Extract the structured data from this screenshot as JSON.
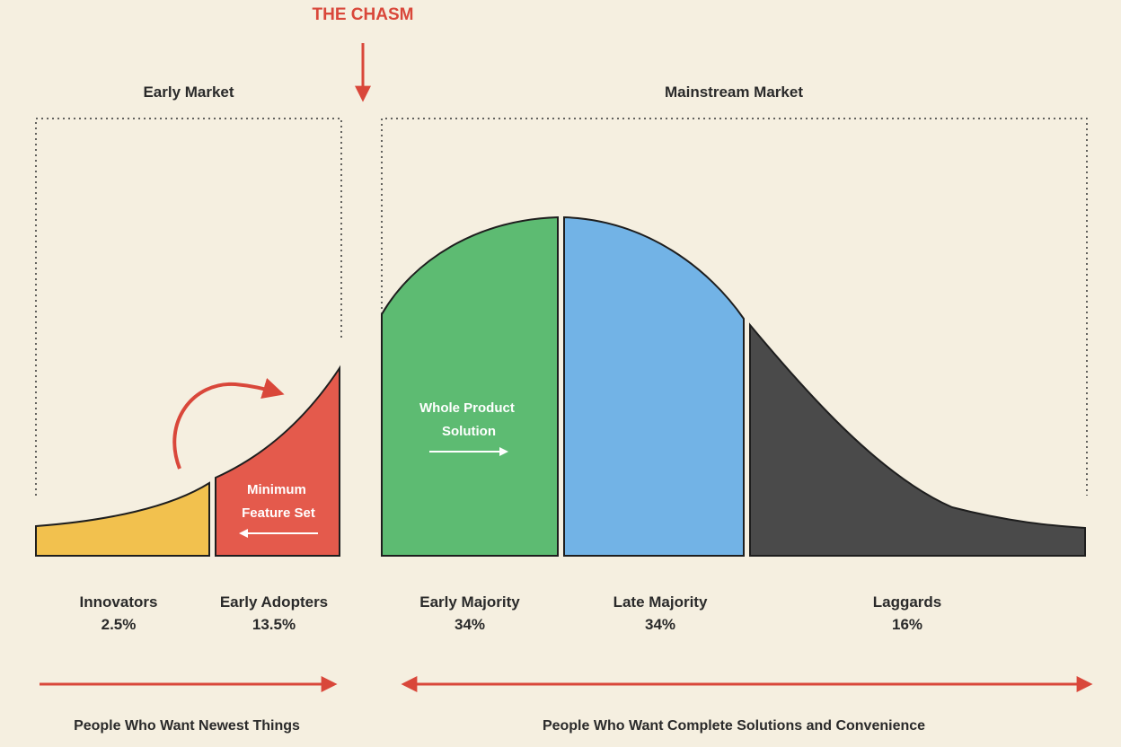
{
  "chasm_label": "THE CHASM",
  "market_labels": {
    "early": "Early Market",
    "mainstream": "Mainstream Market"
  },
  "segments": [
    {
      "name": "Innovators",
      "percent": "2.5%",
      "color": "#f2c14e"
    },
    {
      "name": "Early Adopters",
      "percent": "13.5%",
      "color": "#e45a4c"
    },
    {
      "name": "Early Majority",
      "percent": "34%",
      "color": "#5dbb72"
    },
    {
      "name": "Late Majority",
      "percent": "34%",
      "color": "#72b3e6"
    },
    {
      "name": "Laggards",
      "percent": "16%",
      "color": "#4a4a4a"
    }
  ],
  "inner_labels": {
    "minimum_feature_set": [
      "Minimum",
      "Feature Set"
    ],
    "whole_product_solution": [
      "Whole Product",
      "Solution"
    ]
  },
  "bottom_captions": {
    "left": "People Who Want Newest Things",
    "right": "People Who Want Complete Solutions and Convenience"
  },
  "colors": {
    "accent_red": "#d9473a",
    "outline": "#1e1e1e",
    "background": "#f5efe0"
  }
}
